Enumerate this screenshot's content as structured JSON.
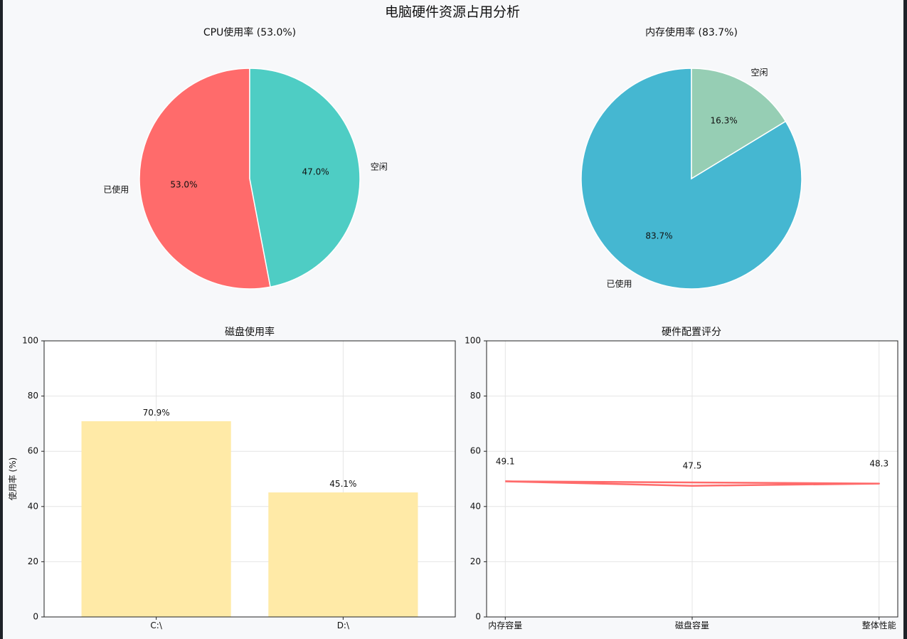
{
  "figure": {
    "title": "电脑硬件资源占用分析"
  },
  "chart_data": [
    {
      "type": "pie",
      "title": "CPU使用率 (53.0%)",
      "labels": [
        "已使用",
        "空闲"
      ],
      "values": [
        53.0,
        47.0
      ],
      "pct_labels": [
        "53.0%",
        "47.0%"
      ],
      "colors": [
        "#ff6b6b",
        "#4ecdc4"
      ],
      "start_angle": 90,
      "direction": "counterclockwise"
    },
    {
      "type": "pie",
      "title": "内存使用率 (83.7%)",
      "labels": [
        "已使用",
        "空闲"
      ],
      "values": [
        83.7,
        16.3
      ],
      "pct_labels": [
        "83.7%",
        "16.3%"
      ],
      "colors": [
        "#45b7d1",
        "#96ceb4"
      ],
      "start_angle": 90,
      "direction": "counterclockwise"
    },
    {
      "type": "bar",
      "title": "磁盘使用率",
      "categories": [
        "C:\\",
        "D:\\"
      ],
      "values": [
        70.9,
        45.1
      ],
      "value_labels": [
        "70.9%",
        "45.1%"
      ],
      "color": "#ffeaa7",
      "ylabel": "使用率 (%)",
      "ylim": [
        0,
        100
      ],
      "yticks": [
        0,
        20,
        40,
        60,
        80,
        100
      ],
      "grid": true
    },
    {
      "type": "line",
      "title": "硬件配置评分",
      "categories": [
        "内存容量",
        "磁盘容量",
        "整体性能"
      ],
      "values": [
        49.1,
        47.5,
        48.3
      ],
      "value_labels": [
        "49.1",
        "47.5",
        "48.3"
      ],
      "color": "#ff6b6b",
      "ylim": [
        0,
        100
      ],
      "yticks": [
        0,
        20,
        40,
        60,
        80,
        100
      ],
      "grid": true,
      "closed": true
    }
  ]
}
